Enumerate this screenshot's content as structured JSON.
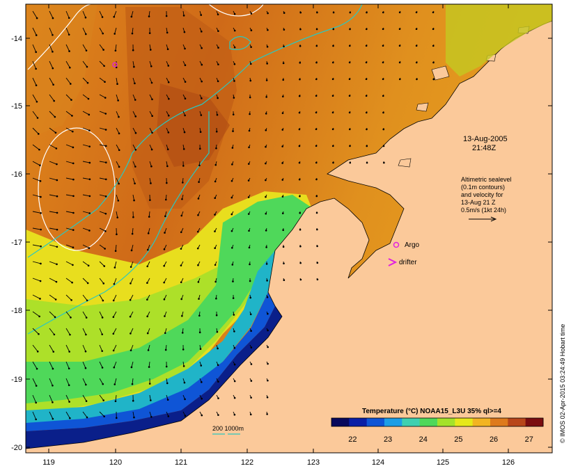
{
  "map": {
    "date": "13-Aug-2005",
    "time": "21:48Z",
    "altimetry_lines": [
      "Altimetric sealevel",
      "(0.1m contours)",
      "and velocity for",
      "13-Aug 21 Z",
      "0.5m/s (1kt 24h)"
    ],
    "legend": {
      "argo": "Argo",
      "drifter": "drifter",
      "bathy": "200  1000m"
    },
    "colorbar": {
      "title": "Temperature (°C) NOAA15_L3U 35% ql>=4",
      "ticks": [
        "22",
        "23",
        "24",
        "25",
        "26",
        "27"
      ],
      "min": 21.4,
      "max": 27.4,
      "colors": [
        "#08085c",
        "#0a1fa6",
        "#0f55d6",
        "#1d9ee6",
        "#3fd0b0",
        "#4fd85a",
        "#a4e22a",
        "#e6e81a",
        "#f2b422",
        "#de7a1c",
        "#b8461a",
        "#7a0d10"
      ]
    },
    "credit": "© IMOS 02-Apr-2015 03:24:49 Hobart time",
    "axes": {
      "lon_ticks": [
        "119",
        "120",
        "121",
        "122",
        "123",
        "124",
        "125",
        "126"
      ],
      "lat_ticks": [
        "-14",
        "-15",
        "-16",
        "-17",
        "-18",
        "-19",
        "-20"
      ]
    },
    "colors": {
      "land": "#fbc99a",
      "bathy_contour": "#2ac8c0",
      "argo_marker": "#e020e0",
      "sealevel_contour": "#ffffff"
    }
  }
}
